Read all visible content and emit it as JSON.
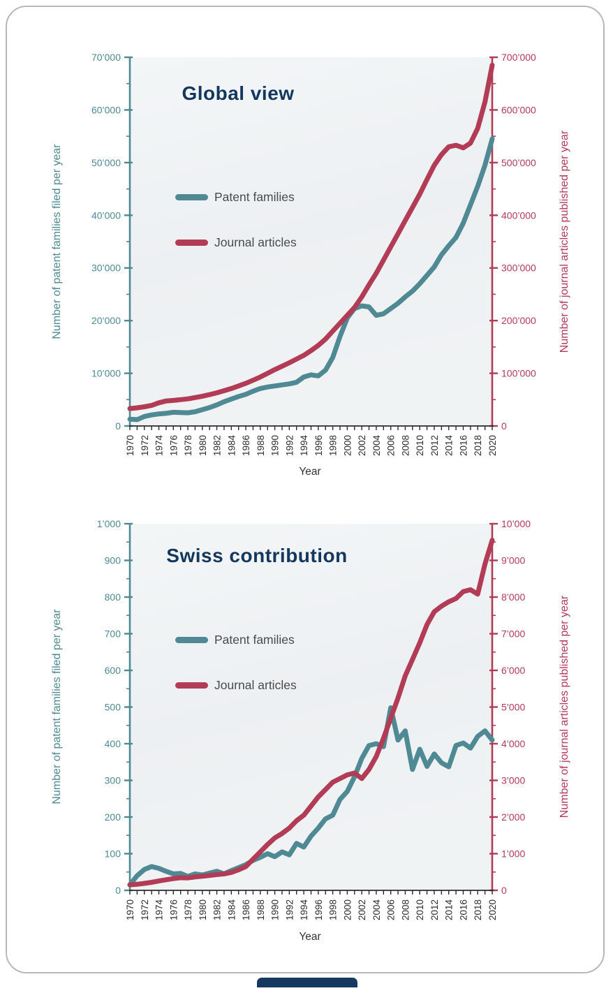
{
  "colors": {
    "teal": "#4E8994",
    "crimson": "#B23B56",
    "navy": "#14375D",
    "legend_text": "#4A4A4A",
    "x_tick_text": "#2E2E2E"
  },
  "footer": {
    "accent_color": "#16395f"
  },
  "charts": [
    {
      "id": "global",
      "title": "Global view",
      "legend": [
        {
          "label": "Patent families",
          "color": "teal"
        },
        {
          "label": "Journal articles",
          "color": "crimson"
        }
      ],
      "x_axis": {
        "label": "Year",
        "min": 1970,
        "max": 2020,
        "labeled_every": 2
      },
      "left_axis": {
        "label": "Number of patent families filed per year",
        "min": 0,
        "max": 70000,
        "ticks": [
          "0",
          "10’000",
          "20’000",
          "30’000",
          "40’000",
          "50’000",
          "60’000",
          "70’000"
        ]
      },
      "right_axis": {
        "label": "Number of journal articles published per year",
        "min": 0,
        "max": 700000,
        "ticks": [
          "0",
          "100’000",
          "200’000",
          "300’000",
          "400’000",
          "500’000",
          "600’000",
          "700’000"
        ]
      },
      "chart_data": {
        "type": "line",
        "grid": false,
        "legend_position": "upper-left-inside",
        "x": [
          1970,
          1971,
          1972,
          1973,
          1974,
          1975,
          1976,
          1977,
          1978,
          1979,
          1980,
          1981,
          1982,
          1983,
          1984,
          1985,
          1986,
          1987,
          1988,
          1989,
          1990,
          1991,
          1992,
          1993,
          1994,
          1995,
          1996,
          1997,
          1998,
          1999,
          2000,
          2001,
          2002,
          2003,
          2004,
          2005,
          2006,
          2007,
          2008,
          2009,
          2010,
          2011,
          2012,
          2013,
          2014,
          2015,
          2016,
          2017,
          2018,
          2019,
          2020
        ],
        "series": [
          {
            "name": "Patent families",
            "axis": "left",
            "color": "teal",
            "values": [
              1300,
              1200,
              1800,
              2100,
              2300,
              2400,
              2600,
              2550,
              2500,
              2700,
              3100,
              3500,
              4000,
              4600,
              5100,
              5600,
              6000,
              6600,
              7100,
              7400,
              7600,
              7800,
              8000,
              8300,
              9300,
              9700,
              9500,
              10600,
              13000,
              17000,
              20500,
              22300,
              22800,
              22600,
              21000,
              21300,
              22300,
              23300,
              24500,
              25600,
              27000,
              28600,
              30200,
              32500,
              34200,
              35800,
              38500,
              42000,
              45500,
              49500,
              54500
            ]
          },
          {
            "name": "Journal articles",
            "axis": "right",
            "color": "crimson",
            "values": [
              33000,
              34500,
              36500,
              39000,
              44000,
              47500,
              48500,
              50000,
              51500,
              54000,
              56500,
              59500,
              63000,
              67000,
              71000,
              76000,
              81000,
              87000,
              93000,
              100000,
              107000,
              113500,
              120000,
              127000,
              134000,
              143000,
              153000,
              165000,
              180000,
              195000,
              210000,
              225000,
              245000,
              268000,
              290000,
              315000,
              340000,
              365000,
              390000,
              415000,
              440000,
              468000,
              495000,
              515000,
              530000,
              533000,
              528000,
              537000,
              565000,
              615000,
              685000
            ]
          }
        ]
      }
    },
    {
      "id": "swiss",
      "title": "Swiss contribution",
      "legend": [
        {
          "label": "Patent families",
          "color": "teal"
        },
        {
          "label": "Journal articles",
          "color": "crimson"
        }
      ],
      "x_axis": {
        "label": "Year",
        "min": 1970,
        "max": 2020,
        "labeled_every": 2
      },
      "left_axis": {
        "label": "Number of patent families filed per year",
        "min": 0,
        "max": 1000,
        "ticks": [
          "0",
          "100",
          "200",
          "300",
          "400",
          "500",
          "600",
          "700",
          "800",
          "900",
          "1’000"
        ]
      },
      "right_axis": {
        "label": "Number of journal articles published per year",
        "min": 0,
        "max": 10000,
        "ticks": [
          "0",
          "1’000",
          "2’000",
          "3’000",
          "4’000",
          "5’000",
          "6’000",
          "7’000",
          "8’000",
          "9’000",
          "10’000"
        ]
      },
      "chart_data": {
        "type": "line",
        "grid": false,
        "legend_position": "upper-left-inside",
        "x": [
          1970,
          1971,
          1972,
          1973,
          1974,
          1975,
          1976,
          1977,
          1978,
          1979,
          1980,
          1981,
          1982,
          1983,
          1984,
          1985,
          1986,
          1987,
          1988,
          1989,
          1990,
          1991,
          1992,
          1993,
          1994,
          1995,
          1996,
          1997,
          1998,
          1999,
          2000,
          2001,
          2002,
          2003,
          2004,
          2005,
          2006,
          2007,
          2008,
          2009,
          2010,
          2011,
          2012,
          2013,
          2014,
          2015,
          2016,
          2017,
          2018,
          2019,
          2020
        ],
        "series": [
          {
            "name": "Patent families",
            "axis": "left",
            "color": "teal",
            "values": [
              15,
              40,
              57,
              65,
              60,
              52,
              45,
              46,
              38,
              45,
              42,
              47,
              52,
              45,
              54,
              62,
              70,
              82,
              90,
              100,
              92,
              105,
              97,
              128,
              118,
              148,
              170,
              195,
              205,
              248,
              270,
              310,
              360,
              395,
              400,
              392,
              498,
              410,
              435,
              330,
              385,
              338,
              372,
              348,
              337,
              395,
              402,
              388,
              420,
              435,
              410
            ]
          },
          {
            "name": "Journal articles",
            "axis": "right",
            "color": "crimson",
            "values": [
              150,
              165,
              190,
              220,
              255,
              290,
              320,
              345,
              340,
              365,
              385,
              405,
              430,
              450,
              490,
              560,
              650,
              850,
              1050,
              1250,
              1430,
              1550,
              1700,
              1900,
              2050,
              2300,
              2550,
              2750,
              2950,
              3050,
              3150,
              3200,
              3050,
              3300,
              3650,
              4150,
              4700,
              5250,
              5850,
              6300,
              6750,
              7250,
              7600,
              7750,
              7870,
              7960,
              8150,
              8200,
              8080,
              8900,
              9550
            ]
          }
        ]
      }
    }
  ]
}
